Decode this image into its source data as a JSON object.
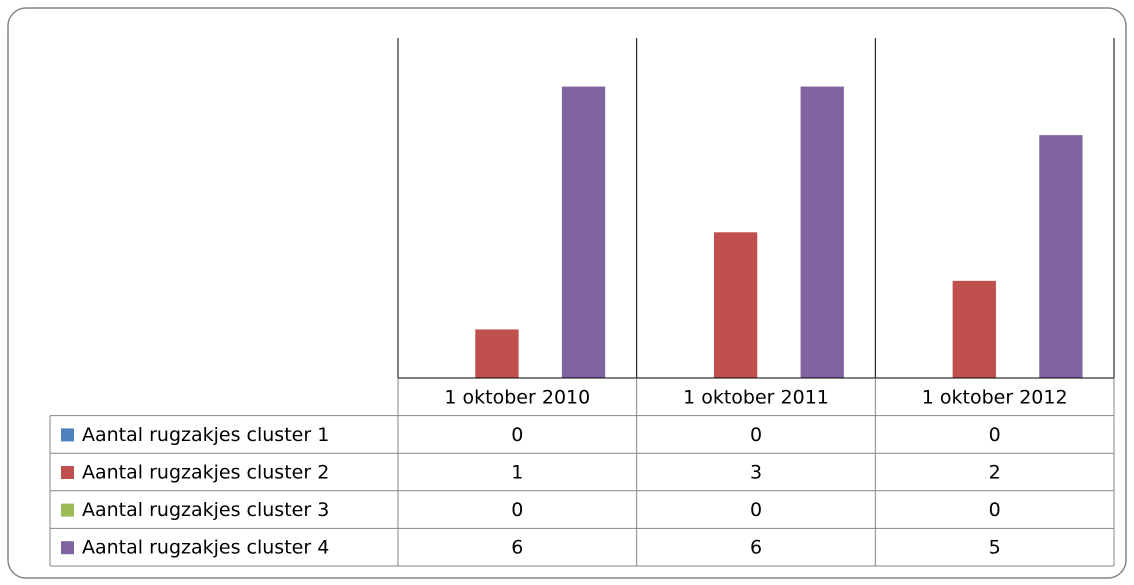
{
  "chart_data": {
    "type": "bar",
    "categories": [
      "1 oktober 2010",
      "1 oktober 2011",
      "1 oktober 2012"
    ],
    "series": [
      {
        "name": "Aantal rugzakjes cluster 1",
        "color": "#4f81bd",
        "values": [
          0,
          0,
          0
        ]
      },
      {
        "name": "Aantal rugzakjes cluster 2",
        "color": "#c0504d",
        "values": [
          1,
          3,
          2
        ]
      },
      {
        "name": "Aantal rugzakjes cluster 3",
        "color": "#9bbb59",
        "values": [
          0,
          0,
          0
        ]
      },
      {
        "name": "Aantal rugzakjes cluster 4",
        "color": "#8064a2",
        "values": [
          6,
          6,
          5
        ]
      }
    ],
    "ylim": [
      0,
      7
    ]
  }
}
